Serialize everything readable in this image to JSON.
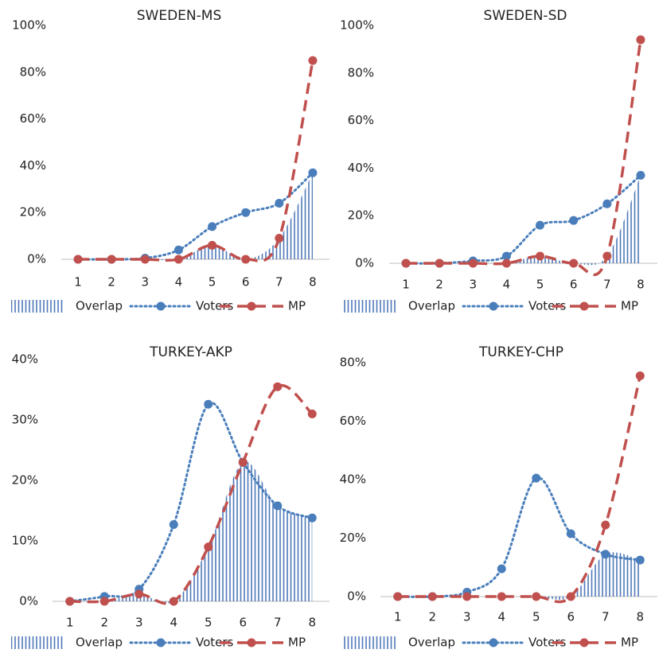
{
  "chart_data": [
    {
      "type": "line",
      "title": "SWEDEN-MS",
      "categories": [
        "1",
        "2",
        "3",
        "4",
        "5",
        "6",
        "7",
        "8"
      ],
      "ylim": [
        0,
        100
      ],
      "yticks": [
        {
          "value": 0,
          "label": "0%"
        },
        {
          "value": 20,
          "label": "20%"
        },
        {
          "value": 40,
          "label": "40%"
        },
        {
          "value": 60,
          "label": "60%"
        },
        {
          "value": 80,
          "label": "80%"
        },
        {
          "value": 100,
          "label": "100%"
        }
      ],
      "series": [
        {
          "name": "Overlap",
          "color": "#4f78b8",
          "style": "hatch",
          "values": [
            0,
            0,
            0,
            0,
            6,
            0,
            9,
            37
          ]
        },
        {
          "name": "Voters",
          "color": "#4a7ebb",
          "style": "dotted",
          "values": [
            0,
            0,
            0.5,
            4,
            14,
            20,
            24,
            37
          ]
        },
        {
          "name": "MP",
          "color": "#c0504d",
          "style": "dashed",
          "values": [
            0,
            0,
            0,
            0,
            6,
            0,
            9,
            85
          ]
        }
      ]
    },
    {
      "type": "line",
      "title": "SWEDEN-SD",
      "categories": [
        "1",
        "2",
        "3",
        "4",
        "5",
        "6",
        "7",
        "8"
      ],
      "ylim": [
        0,
        100
      ],
      "yticks": [
        {
          "value": 0,
          "label": "0%"
        },
        {
          "value": 20,
          "label": "20%"
        },
        {
          "value": 40,
          "label": "40%"
        },
        {
          "value": 60,
          "label": "60%"
        },
        {
          "value": 80,
          "label": "80%"
        },
        {
          "value": 100,
          "label": "100%"
        }
      ],
      "series": [
        {
          "name": "Overlap",
          "color": "#4f78b8",
          "style": "hatch",
          "values": [
            0,
            0,
            0,
            0,
            3,
            0,
            3,
            37
          ]
        },
        {
          "name": "Voters",
          "color": "#4a7ebb",
          "style": "dotted",
          "values": [
            0,
            0,
            1,
            3,
            16,
            18,
            25,
            37
          ]
        },
        {
          "name": "MP",
          "color": "#c0504d",
          "style": "dashed",
          "values": [
            0,
            0,
            0,
            0,
            3,
            0,
            3,
            94
          ]
        }
      ]
    },
    {
      "type": "line",
      "title": "TURKEY-AKP",
      "categories": [
        "1",
        "2",
        "3",
        "4",
        "5",
        "6",
        "7",
        "8"
      ],
      "ylim": [
        0,
        40
      ],
      "yticks": [
        {
          "value": 0,
          "label": "0%"
        },
        {
          "value": 10,
          "label": "10%"
        },
        {
          "value": 20,
          "label": "20%"
        },
        {
          "value": 30,
          "label": "30%"
        },
        {
          "value": 40,
          "label": "40%"
        }
      ],
      "series": [
        {
          "name": "Overlap",
          "color": "#4f78b8",
          "style": "hatch",
          "values": [
            0,
            0,
            1.2,
            0,
            9,
            23,
            15.8,
            13.8
          ]
        },
        {
          "name": "Voters",
          "color": "#4a7ebb",
          "style": "dotted",
          "values": [
            0,
            0.8,
            2,
            12.7,
            32.6,
            23,
            15.8,
            13.8
          ]
        },
        {
          "name": "MP",
          "color": "#c0504d",
          "style": "dashed",
          "values": [
            0,
            0,
            1.2,
            0,
            9,
            23,
            35.5,
            31
          ]
        }
      ]
    },
    {
      "type": "line",
      "title": "TURKEY-CHP",
      "categories": [
        "1",
        "2",
        "3",
        "4",
        "5",
        "6",
        "7",
        "8"
      ],
      "ylim": [
        0,
        80
      ],
      "yticks": [
        {
          "value": 0,
          "label": "0%"
        },
        {
          "value": 20,
          "label": "20%"
        },
        {
          "value": 40,
          "label": "40%"
        },
        {
          "value": 60,
          "label": "60%"
        },
        {
          "value": 80,
          "label": "80%"
        }
      ],
      "series": [
        {
          "name": "Overlap",
          "color": "#4f78b8",
          "style": "hatch",
          "values": [
            0,
            0,
            0,
            0,
            0,
            0,
            14.5,
            12.5
          ]
        },
        {
          "name": "Voters",
          "color": "#4a7ebb",
          "style": "dotted",
          "values": [
            0,
            0,
            1.5,
            9.5,
            40.5,
            21.5,
            14.5,
            12.5
          ]
        },
        {
          "name": "MP",
          "color": "#c0504d",
          "style": "dashed",
          "values": [
            0,
            0,
            0,
            0,
            0,
            0,
            24.5,
            75.5
          ]
        }
      ]
    }
  ]
}
